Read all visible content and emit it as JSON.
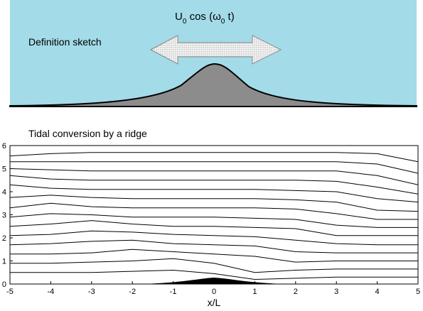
{
  "sketch": {
    "label": "Definition sketch",
    "forcing": [
      "U",
      "0",
      " cos (ω",
      "0",
      " t)"
    ]
  },
  "chart_data": {
    "type": "line",
    "title": "Tidal conversion by a ridge",
    "x_label": "x/L",
    "x": [
      -5,
      -4,
      -3,
      -2,
      -1,
      0,
      1,
      2,
      3,
      4,
      5
    ],
    "xlim": [
      -5,
      5
    ],
    "ylim": [
      0,
      6
    ],
    "xticks": [
      -5,
      -4,
      -3,
      -2,
      -1,
      0,
      1,
      2,
      3,
      4,
      5
    ],
    "yticks": [
      0,
      1,
      2,
      3,
      4,
      5,
      6
    ],
    "color": "#000000",
    "series": [
      {
        "values": [
          0.5,
          0.5,
          0.5,
          0.55,
          0.6,
          0.45,
          0.2,
          0.25,
          0.3,
          0.3,
          0.3
        ]
      },
      {
        "values": [
          0.9,
          0.9,
          0.95,
          1.0,
          1.1,
          0.9,
          0.5,
          0.6,
          0.65,
          0.65,
          0.65
        ]
      },
      {
        "values": [
          1.3,
          1.3,
          1.35,
          1.5,
          1.4,
          1.3,
          1.2,
          0.95,
          1.0,
          1.0,
          1.0
        ]
      },
      {
        "values": [
          1.7,
          1.75,
          1.85,
          1.9,
          1.75,
          1.7,
          1.65,
          1.4,
          1.35,
          1.35,
          1.35
        ]
      },
      {
        "values": [
          2.1,
          2.15,
          2.3,
          2.25,
          2.15,
          2.1,
          2.05,
          1.9,
          1.75,
          1.7,
          1.7
        ]
      },
      {
        "values": [
          2.5,
          2.6,
          2.75,
          2.6,
          2.5,
          2.5,
          2.45,
          2.4,
          2.1,
          2.1,
          2.1
        ]
      },
      {
        "values": [
          2.9,
          3.05,
          3.0,
          2.9,
          2.9,
          2.9,
          2.85,
          2.8,
          2.55,
          2.45,
          2.45
        ]
      },
      {
        "values": [
          3.3,
          3.5,
          3.35,
          3.3,
          3.3,
          3.3,
          3.3,
          3.25,
          3.05,
          2.8,
          2.8
        ]
      },
      {
        "values": [
          3.75,
          3.85,
          3.75,
          3.7,
          3.7,
          3.7,
          3.7,
          3.65,
          3.55,
          3.2,
          3.15
        ]
      },
      {
        "values": [
          4.3,
          4.15,
          4.1,
          4.1,
          4.1,
          4.1,
          4.1,
          4.05,
          4.0,
          3.7,
          3.55
        ]
      },
      {
        "values": [
          4.7,
          4.55,
          4.5,
          4.5,
          4.5,
          4.5,
          4.5,
          4.5,
          4.45,
          4.2,
          3.9
        ]
      },
      {
        "values": [
          5.0,
          4.95,
          4.9,
          4.9,
          4.9,
          4.9,
          4.9,
          4.9,
          4.9,
          4.7,
          4.3
        ]
      },
      {
        "values": [
          5.3,
          5.3,
          5.3,
          5.3,
          5.3,
          5.3,
          5.3,
          5.3,
          5.3,
          5.2,
          4.8
        ]
      },
      {
        "values": [
          5.55,
          5.65,
          5.7,
          5.7,
          5.7,
          5.7,
          5.7,
          5.7,
          5.7,
          5.65,
          5.3
        ]
      }
    ]
  }
}
